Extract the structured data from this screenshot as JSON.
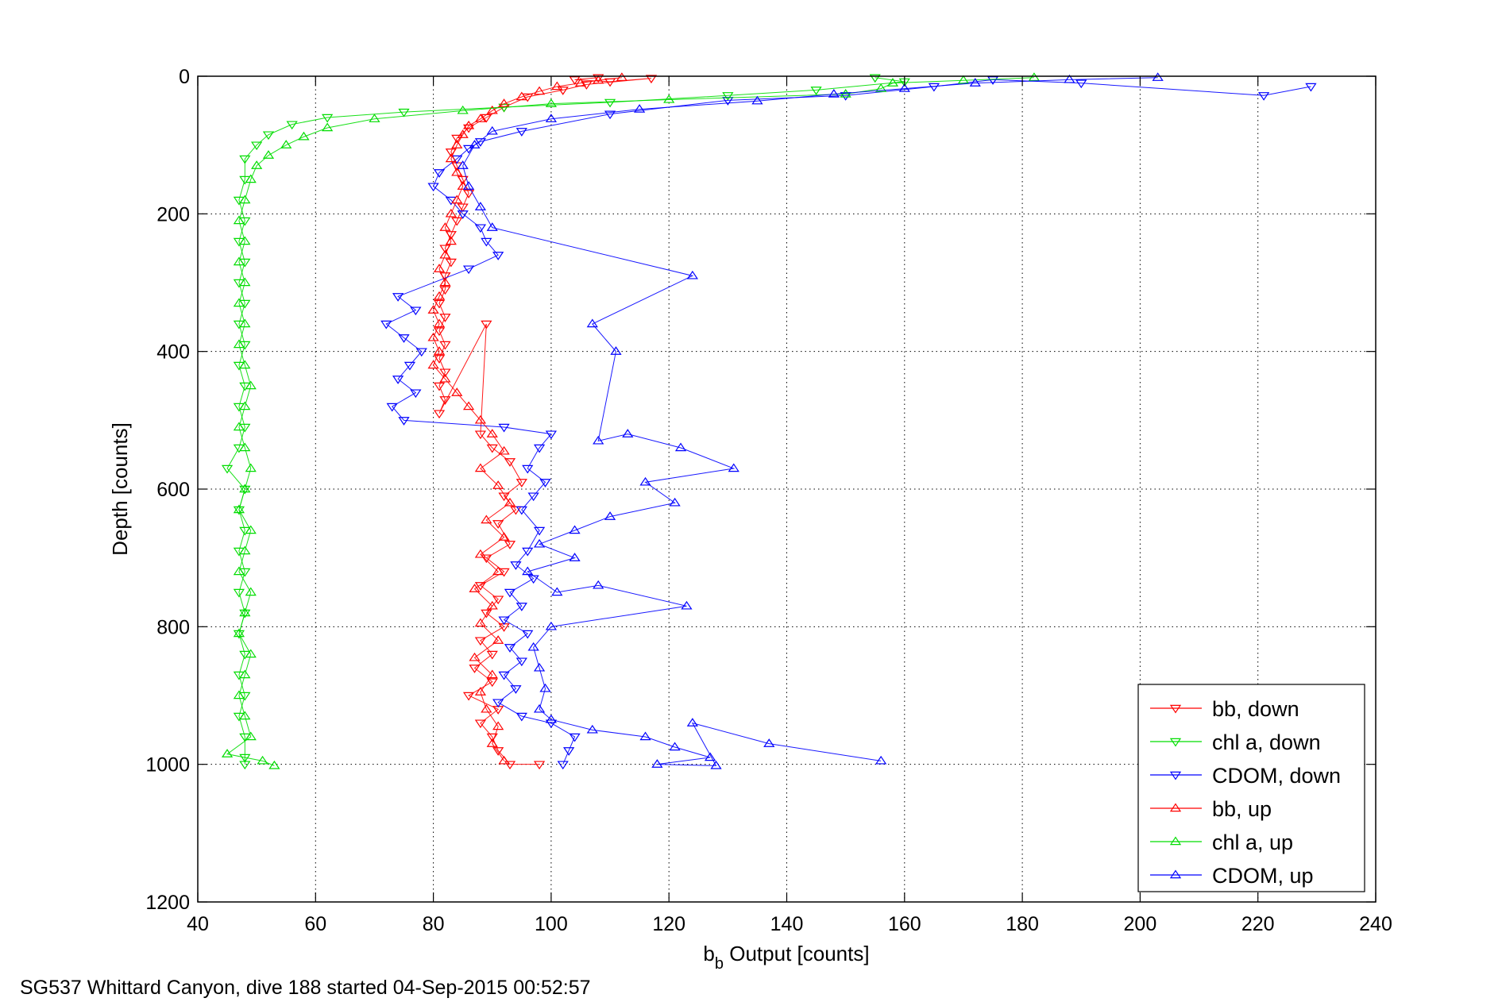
{
  "caption": "SG537 Whittard Canyon, dive 188 started 04-Sep-2015 00:52:57",
  "chart_data": {
    "type": "scatter",
    "title": "",
    "xlabel": {
      "main": "b",
      "sub": "b",
      "rest": " Output [counts]"
    },
    "ylabel": "Depth [counts]",
    "xlim": [
      40,
      240
    ],
    "ylim": [
      0,
      1200
    ],
    "y_reversed": true,
    "xticks": [
      40,
      60,
      80,
      100,
      120,
      140,
      160,
      180,
      200,
      220,
      240
    ],
    "yticks": [
      0,
      200,
      400,
      600,
      800,
      1000,
      1200
    ],
    "grid": true,
    "legend_position": "bottom-right",
    "series": [
      {
        "name": "bb, down",
        "color": "#ff0000",
        "marker": "triangle-down",
        "points": [
          [
            108,
            2
          ],
          [
            104,
            5
          ],
          [
            110,
            8
          ],
          [
            117,
            3
          ],
          [
            106,
            12
          ],
          [
            102,
            20
          ],
          [
            96,
            30
          ],
          [
            92,
            45
          ],
          [
            89,
            60
          ],
          [
            86,
            75
          ],
          [
            84,
            90
          ],
          [
            83,
            110
          ],
          [
            84,
            130
          ],
          [
            85,
            150
          ],
          [
            86,
            170
          ],
          [
            85,
            190
          ],
          [
            84,
            210
          ],
          [
            83,
            230
          ],
          [
            82,
            250
          ],
          [
            83,
            270
          ],
          [
            82,
            290
          ],
          [
            82,
            310
          ],
          [
            81,
            330
          ],
          [
            82,
            350
          ],
          [
            81,
            370
          ],
          [
            82,
            390
          ],
          [
            81,
            410
          ],
          [
            82,
            430
          ],
          [
            81,
            450
          ],
          [
            82,
            470
          ],
          [
            81,
            490
          ],
          [
            89,
            360
          ],
          [
            88,
            520
          ],
          [
            90,
            540
          ],
          [
            93,
            560
          ],
          [
            95,
            590
          ],
          [
            92,
            610
          ],
          [
            94,
            630
          ],
          [
            91,
            650
          ],
          [
            93,
            680
          ],
          [
            89,
            700
          ],
          [
            92,
            720
          ],
          [
            88,
            740
          ],
          [
            91,
            760
          ],
          [
            89,
            780
          ],
          [
            92,
            800
          ],
          [
            88,
            820
          ],
          [
            90,
            840
          ],
          [
            87,
            860
          ],
          [
            90,
            880
          ],
          [
            86,
            900
          ],
          [
            91,
            920
          ],
          [
            88,
            940
          ],
          [
            90,
            960
          ],
          [
            91,
            980
          ],
          [
            93,
            1000
          ],
          [
            98,
            1000
          ]
        ]
      },
      {
        "name": "chl a, down",
        "color": "#00dd00",
        "marker": "triangle-down",
        "points": [
          [
            155,
            2
          ],
          [
            160,
            8
          ],
          [
            145,
            20
          ],
          [
            130,
            28
          ],
          [
            110,
            38
          ],
          [
            92,
            45
          ],
          [
            75,
            52
          ],
          [
            62,
            60
          ],
          [
            56,
            70
          ],
          [
            52,
            85
          ],
          [
            50,
            100
          ],
          [
            48,
            120
          ],
          [
            48,
            150
          ],
          [
            47,
            180
          ],
          [
            48,
            210
          ],
          [
            47,
            240
          ],
          [
            48,
            270
          ],
          [
            47,
            300
          ],
          [
            48,
            330
          ],
          [
            47,
            360
          ],
          [
            48,
            390
          ],
          [
            47,
            420
          ],
          [
            48,
            450
          ],
          [
            47,
            480
          ],
          [
            48,
            510
          ],
          [
            47,
            540
          ],
          [
            45,
            570
          ],
          [
            48,
            600
          ],
          [
            47,
            630
          ],
          [
            48,
            660
          ],
          [
            47,
            690
          ],
          [
            48,
            720
          ],
          [
            47,
            750
          ],
          [
            48,
            780
          ],
          [
            47,
            810
          ],
          [
            48,
            840
          ],
          [
            47,
            870
          ],
          [
            48,
            900
          ],
          [
            47,
            930
          ],
          [
            48,
            960
          ],
          [
            48,
            990
          ],
          [
            48,
            1000
          ]
        ]
      },
      {
        "name": "CDOM, down",
        "color": "#0000ff",
        "marker": "triangle-down",
        "points": [
          [
            229,
            15
          ],
          [
            221,
            28
          ],
          [
            190,
            10
          ],
          [
            175,
            5
          ],
          [
            165,
            15
          ],
          [
            150,
            28
          ],
          [
            130,
            35
          ],
          [
            110,
            55
          ],
          [
            95,
            80
          ],
          [
            88,
            95
          ],
          [
            86,
            105
          ],
          [
            84,
            120
          ],
          [
            81,
            140
          ],
          [
            80,
            160
          ],
          [
            83,
            180
          ],
          [
            85,
            200
          ],
          [
            88,
            220
          ],
          [
            89,
            240
          ],
          [
            91,
            260
          ],
          [
            86,
            280
          ],
          [
            74,
            320
          ],
          [
            77,
            340
          ],
          [
            72,
            360
          ],
          [
            75,
            380
          ],
          [
            78,
            400
          ],
          [
            76,
            420
          ],
          [
            74,
            440
          ],
          [
            77,
            460
          ],
          [
            73,
            480
          ],
          [
            75,
            500
          ],
          [
            92,
            510
          ],
          [
            100,
            520
          ],
          [
            98,
            540
          ],
          [
            96,
            570
          ],
          [
            99,
            590
          ],
          [
            97,
            610
          ],
          [
            95,
            630
          ],
          [
            98,
            660
          ],
          [
            96,
            690
          ],
          [
            94,
            710
          ],
          [
            97,
            730
          ],
          [
            93,
            750
          ],
          [
            95,
            770
          ],
          [
            92,
            790
          ],
          [
            96,
            810
          ],
          [
            93,
            830
          ],
          [
            95,
            850
          ],
          [
            92,
            870
          ],
          [
            94,
            890
          ],
          [
            91,
            910
          ],
          [
            95,
            930
          ],
          [
            100,
            940
          ],
          [
            104,
            960
          ],
          [
            103,
            980
          ],
          [
            102,
            1000
          ]
        ]
      },
      {
        "name": "bb, up",
        "color": "#ff0000",
        "marker": "triangle-up",
        "points": [
          [
            112,
            2
          ],
          [
            108,
            6
          ],
          [
            105,
            10
          ],
          [
            101,
            15
          ],
          [
            98,
            22
          ],
          [
            95,
            30
          ],
          [
            92,
            40
          ],
          [
            90,
            50
          ],
          [
            88,
            62
          ],
          [
            86,
            72
          ],
          [
            85,
            85
          ],
          [
            84,
            100
          ],
          [
            83,
            120
          ],
          [
            84,
            140
          ],
          [
            85,
            160
          ],
          [
            84,
            180
          ],
          [
            83,
            200
          ],
          [
            82,
            220
          ],
          [
            83,
            240
          ],
          [
            82,
            260
          ],
          [
            81,
            280
          ],
          [
            82,
            300
          ],
          [
            81,
            320
          ],
          [
            80,
            340
          ],
          [
            81,
            360
          ],
          [
            80,
            380
          ],
          [
            81,
            400
          ],
          [
            80,
            420
          ],
          [
            82,
            440
          ],
          [
            84,
            460
          ],
          [
            86,
            480
          ],
          [
            88,
            500
          ],
          [
            90,
            520
          ],
          [
            92,
            545
          ],
          [
            88,
            570
          ],
          [
            91,
            595
          ],
          [
            93,
            620
          ],
          [
            89,
            645
          ],
          [
            92,
            670
          ],
          [
            88,
            695
          ],
          [
            91,
            720
          ],
          [
            87,
            745
          ],
          [
            90,
            770
          ],
          [
            88,
            795
          ],
          [
            91,
            820
          ],
          [
            87,
            845
          ],
          [
            90,
            870
          ],
          [
            88,
            895
          ],
          [
            89,
            920
          ],
          [
            91,
            945
          ],
          [
            90,
            970
          ],
          [
            92,
            995
          ]
        ]
      },
      {
        "name": "chl a, up",
        "color": "#00dd00",
        "marker": "triangle-up",
        "points": [
          [
            182,
            2
          ],
          [
            170,
            6
          ],
          [
            158,
            10
          ],
          [
            156,
            18
          ],
          [
            150,
            26
          ],
          [
            120,
            34
          ],
          [
            100,
            40
          ],
          [
            85,
            50
          ],
          [
            70,
            62
          ],
          [
            62,
            75
          ],
          [
            58,
            88
          ],
          [
            55,
            100
          ],
          [
            52,
            115
          ],
          [
            50,
            130
          ],
          [
            49,
            150
          ],
          [
            48,
            180
          ],
          [
            47,
            210
          ],
          [
            48,
            240
          ],
          [
            47,
            270
          ],
          [
            48,
            300
          ],
          [
            47,
            330
          ],
          [
            48,
            360
          ],
          [
            47,
            390
          ],
          [
            48,
            420
          ],
          [
            49,
            450
          ],
          [
            48,
            480
          ],
          [
            47,
            510
          ],
          [
            48,
            540
          ],
          [
            49,
            570
          ],
          [
            48,
            600
          ],
          [
            47,
            630
          ],
          [
            49,
            660
          ],
          [
            48,
            690
          ],
          [
            47,
            720
          ],
          [
            49,
            750
          ],
          [
            48,
            780
          ],
          [
            47,
            810
          ],
          [
            49,
            840
          ],
          [
            48,
            870
          ],
          [
            47,
            900
          ],
          [
            48,
            930
          ],
          [
            49,
            960
          ],
          [
            45,
            985
          ],
          [
            51,
            995
          ],
          [
            53,
            1002
          ]
        ]
      },
      {
        "name": "CDOM, up",
        "color": "#0000ff",
        "marker": "triangle-up",
        "points": [
          [
            203,
            2
          ],
          [
            188,
            5
          ],
          [
            172,
            10
          ],
          [
            160,
            18
          ],
          [
            148,
            26
          ],
          [
            135,
            36
          ],
          [
            115,
            48
          ],
          [
            100,
            62
          ],
          [
            90,
            80
          ],
          [
            87,
            100
          ],
          [
            85,
            130
          ],
          [
            86,
            160
          ],
          [
            88,
            190
          ],
          [
            90,
            220
          ],
          [
            124,
            290
          ],
          [
            107,
            360
          ],
          [
            111,
            400
          ],
          [
            108,
            530
          ],
          [
            113,
            520
          ],
          [
            122,
            540
          ],
          [
            131,
            570
          ],
          [
            116,
            590
          ],
          [
            121,
            620
          ],
          [
            110,
            640
          ],
          [
            104,
            660
          ],
          [
            98,
            680
          ],
          [
            104,
            700
          ],
          [
            96,
            720
          ],
          [
            101,
            750
          ],
          [
            108,
            740
          ],
          [
            123,
            770
          ],
          [
            100,
            800
          ],
          [
            97,
            830
          ],
          [
            98,
            860
          ],
          [
            99,
            890
          ],
          [
            98,
            920
          ],
          [
            100,
            935
          ],
          [
            107,
            950
          ],
          [
            116,
            960
          ],
          [
            121,
            975
          ],
          [
            127,
            990
          ],
          [
            118,
            1000
          ],
          [
            128,
            1002
          ],
          [
            124,
            940
          ],
          [
            137,
            970
          ],
          [
            156,
            995
          ]
        ]
      }
    ]
  }
}
